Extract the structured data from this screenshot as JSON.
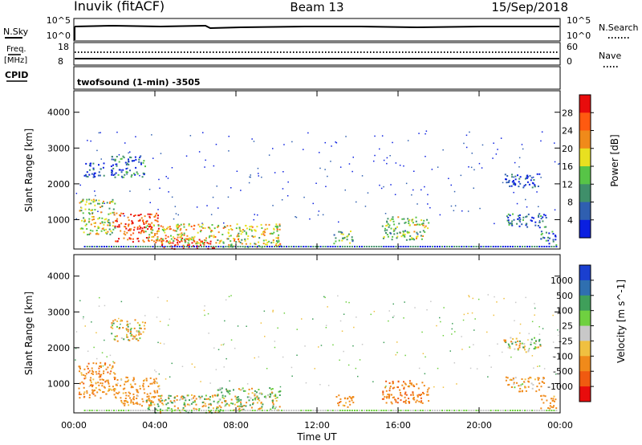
{
  "header": {
    "station": "Inuvik (fitACF)",
    "beam": "Beam 13",
    "date": "15/Sep/2018"
  },
  "status_panels": {
    "nsky_label": "N.Sky",
    "nsky_ticks": [
      "10^5",
      "10^0"
    ],
    "nsearch_label": "N.Search",
    "nsearch_ticks": [
      "10^5",
      "10^0"
    ],
    "freq_label": "Freq.",
    "freq_unit": "[MHz]",
    "freq_ticks": [
      "18",
      "8"
    ],
    "nave_label": "Nave",
    "nave_ticks": [
      "60",
      "0"
    ],
    "cpid_label": "CPID",
    "cpid_text": "twofsound (1-min) -3505"
  },
  "chart_data": [
    {
      "type": "heatmap",
      "panel": "power",
      "ylabel": "Slant Range [km]",
      "xlim": [
        0,
        24
      ],
      "ylim": [
        180,
        4600
      ],
      "y_ticks": [
        "1000",
        "2000",
        "3000",
        "4000"
      ],
      "colorbar_label": "Power [dB]",
      "colorbar_ticks": [
        "4",
        "8",
        "12",
        "16",
        "20",
        "24",
        "28"
      ],
      "colors": [
        "#0a1fe0",
        "#2f5fb0",
        "#3f8f6a",
        "#57c447",
        "#e8e020",
        "#f08a1a",
        "#ff5a10",
        "#e80c0c"
      ],
      "regions": [
        {
          "t": [
            0.2,
            2.0
          ],
          "r": [
            600,
            1600
          ],
          "level": 0.5
        },
        {
          "t": [
            2.0,
            4.2
          ],
          "r": [
            400,
            1200
          ],
          "level": 0.85
        },
        {
          "t": [
            4.2,
            7.0
          ],
          "r": [
            200,
            500
          ],
          "level": 0.95
        },
        {
          "t": [
            3.5,
            7.0
          ],
          "r": [
            350,
            900
          ],
          "level": 0.6
        },
        {
          "t": [
            7.0,
            10.2
          ],
          "r": [
            250,
            900
          ],
          "level": 0.55
        },
        {
          "t": [
            1.8,
            3.5
          ],
          "r": [
            2200,
            2800
          ],
          "level": 0.2
        },
        {
          "t": [
            0.4,
            1.5
          ],
          "r": [
            2200,
            2600
          ],
          "level": 0.15
        },
        {
          "t": [
            12.8,
            13.8
          ],
          "r": [
            350,
            700
          ],
          "level": 0.4
        },
        {
          "t": [
            15.2,
            17.5
          ],
          "r": [
            450,
            1100
          ],
          "level": 0.45
        },
        {
          "t": [
            21.3,
            23.3
          ],
          "r": [
            800,
            1200
          ],
          "level": 0.25
        },
        {
          "t": [
            21.2,
            23.0
          ],
          "r": [
            1900,
            2300
          ],
          "level": 0.15
        },
        {
          "t": [
            23.0,
            23.8
          ],
          "r": [
            300,
            700
          ],
          "level": 0.2
        }
      ]
    },
    {
      "type": "heatmap",
      "panel": "velocity",
      "xlabel": "Time UT",
      "ylabel": "Slant Range [km]",
      "xlim": [
        0,
        24
      ],
      "ylim": [
        180,
        4600
      ],
      "x_ticks": [
        "00:00",
        "04:00",
        "08:00",
        "12:00",
        "16:00",
        "20:00",
        "00:00"
      ],
      "y_ticks": [
        "1000",
        "2000",
        "3000",
        "4000"
      ],
      "colorbar_label": "Velocity [m s^-1]",
      "colorbar_ticks": [
        "1000",
        "500",
        "100",
        "25",
        "-25",
        "-100",
        "-500",
        "-1000"
      ],
      "colors": [
        "#1a3fd0",
        "#2f6fb0",
        "#3f9f5a",
        "#6fd040",
        "#c8c8c8",
        "#f0c040",
        "#f08a1a",
        "#f05a10",
        "#e80c0c"
      ],
      "regions": [
        {
          "t": [
            0.2,
            2.0
          ],
          "r": [
            600,
            1600
          ],
          "vel": -300
        },
        {
          "t": [
            2.0,
            4.2
          ],
          "r": [
            400,
            1200
          ],
          "vel": -250
        },
        {
          "t": [
            3.5,
            7.5
          ],
          "r": [
            200,
            700
          ],
          "vel": 0
        },
        {
          "t": [
            7.0,
            10.2
          ],
          "r": [
            250,
            900
          ],
          "vel": 50
        },
        {
          "t": [
            1.8,
            3.5
          ],
          "r": [
            2200,
            2800
          ],
          "vel": -60
        },
        {
          "t": [
            12.8,
            13.8
          ],
          "r": [
            350,
            700
          ],
          "vel": -300
        },
        {
          "t": [
            15.2,
            17.5
          ],
          "r": [
            450,
            1100
          ],
          "vel": -400
        },
        {
          "t": [
            21.3,
            23.3
          ],
          "r": [
            800,
            1200
          ],
          "vel": -200
        },
        {
          "t": [
            21.2,
            23.0
          ],
          "r": [
            1900,
            2300
          ],
          "vel": 0
        },
        {
          "t": [
            23.0,
            23.8
          ],
          "r": [
            300,
            700
          ],
          "vel": -300
        }
      ]
    }
  ]
}
